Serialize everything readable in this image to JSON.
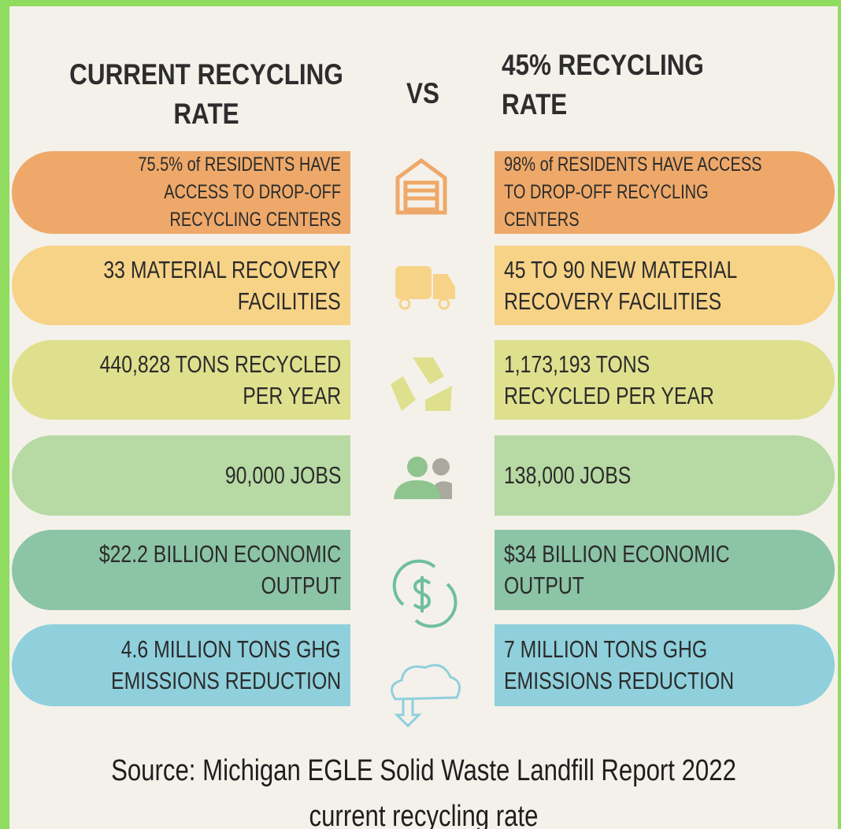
{
  "header": {
    "left_title": [
      "CURRENT RECYCLING",
      "RATE"
    ],
    "vs": "VS",
    "right_title": [
      "45% RECYCLING",
      "RATE"
    ]
  },
  "rows": [
    {
      "left": [
        "75.5% of RESIDENTS HAVE",
        "ACCESS TO DROP-OFF",
        "RECYCLING CENTERS"
      ],
      "right": [
        "98% of RESIDENTS HAVE ACCESS",
        "TO DROP-OFF  RECYCLING",
        "CENTERS"
      ]
    },
    {
      "left": [
        "33 MATERIAL RECOVERY",
        "FACILITIES"
      ],
      "right": [
        "45 TO 90 NEW MATERIAL",
        "RECOVERY FACILITIES"
      ]
    },
    {
      "left": [
        "440,828 TONS RECYCLED",
        "PER YEAR"
      ],
      "right": [
        "1,173,193 TONS",
        "RECYCLED PER YEAR"
      ]
    },
    {
      "left": [
        "90,000 JOBS"
      ],
      "right": [
        "138,000 JOBS"
      ]
    },
    {
      "left": [
        "$22.2 BILLION ECONOMIC",
        "OUTPUT"
      ],
      "right": [
        "$34 BILLION ECONOMIC",
        "OUTPUT"
      ]
    },
    {
      "left": [
        "4.6 MILLION TONS GHG",
        "EMISSIONS REDUCTION"
      ],
      "right": [
        "7 MILLION TONS GHG",
        "EMISSIONS REDUCTION"
      ]
    }
  ],
  "source": [
    "Source: Michigan EGLE Solid Waste Landfill Report 2022",
    "current recycling rate"
  ]
}
